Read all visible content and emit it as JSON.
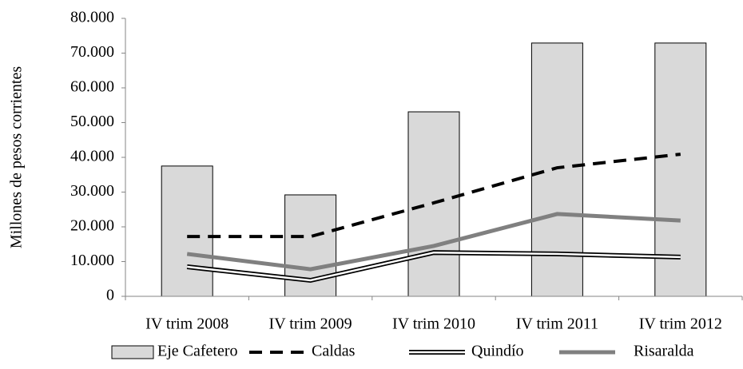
{
  "chart_data": {
    "type": "bar",
    "y_label": "Millones de pesos corrientes",
    "categories": [
      "IV trim 2008",
      "IV trim 2009",
      "IV trim 2010",
      "IV trim 2011",
      "IV trim 2012"
    ],
    "series": [
      {
        "name": "Eje Cafetero",
        "type": "bar",
        "color": "#d9d9d9",
        "values": [
          37500,
          29200,
          53100,
          72900,
          72900
        ]
      },
      {
        "name": "Caldas",
        "type": "line",
        "line_style": "dashed",
        "color": "#000000",
        "values": [
          17200,
          17200,
          26900,
          37000,
          40900
        ]
      },
      {
        "name": "Quindío",
        "type": "line",
        "line_style": "double",
        "color": "#000000",
        "values": [
          8500,
          4600,
          12600,
          12200,
          11300
        ]
      },
      {
        "name": "Risaralda",
        "type": "line",
        "line_style": "solid",
        "color": "#808080",
        "values": [
          12200,
          7800,
          14500,
          23700,
          21800
        ]
      }
    ],
    "ylim": [
      0,
      80000
    ],
    "yticks": [
      0,
      {
        "value": 10000,
        "label": "10.000"
      },
      {
        "value": 20000,
        "label": "20.000"
      },
      {
        "value": 30000,
        "label": "30.000"
      },
      {
        "value": 40000,
        "label": "40.000"
      },
      {
        "value": 50000,
        "label": "50.000"
      },
      {
        "value": 60000,
        "label": "60.000"
      },
      {
        "value": 70000,
        "label": "70.000"
      },
      {
        "value": 80000,
        "label": "80.000"
      }
    ],
    "grid": false
  }
}
